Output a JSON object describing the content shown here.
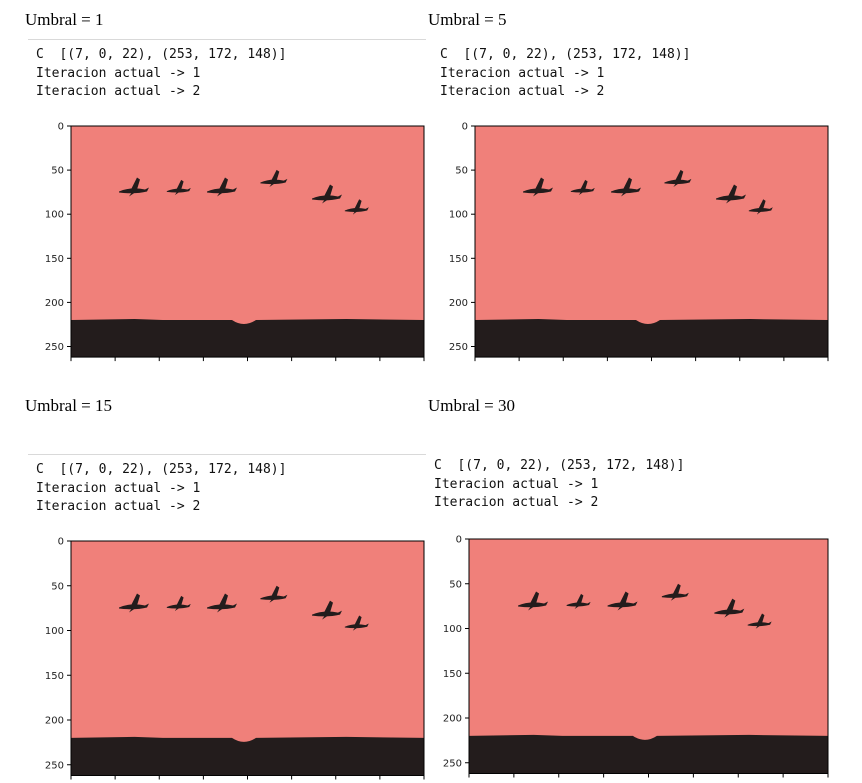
{
  "palette": {
    "sky": "#f0807a",
    "ground": "#231c1c",
    "axis": "#000000"
  },
  "panels": [
    {
      "title": "Umbral = 1",
      "output": [
        "C  [(7, 0, 22), (253, 172, 148)]",
        "Iteracion actual -> 1",
        "Iteracion actual -> 2"
      ]
    },
    {
      "title": "Umbral = 5",
      "output": [
        "C  [(7, 0, 22), (253, 172, 148)]",
        "Iteracion actual -> 1",
        "Iteracion actual -> 2"
      ]
    },
    {
      "title": "Umbral = 15",
      "output": [
        "C  [(7, 0, 22), (253, 172, 148)]",
        "Iteracion actual -> 1",
        "Iteracion actual -> 2"
      ]
    },
    {
      "title": "Umbral = 30",
      "output": [
        "C  [(7, 0, 22), (253, 172, 148)]",
        "Iteracion actual -> 1",
        "Iteracion actual -> 2"
      ]
    }
  ],
  "image_axis": {
    "y_ticks": [
      0,
      50,
      100,
      150,
      200,
      250
    ],
    "y_max": 262
  }
}
